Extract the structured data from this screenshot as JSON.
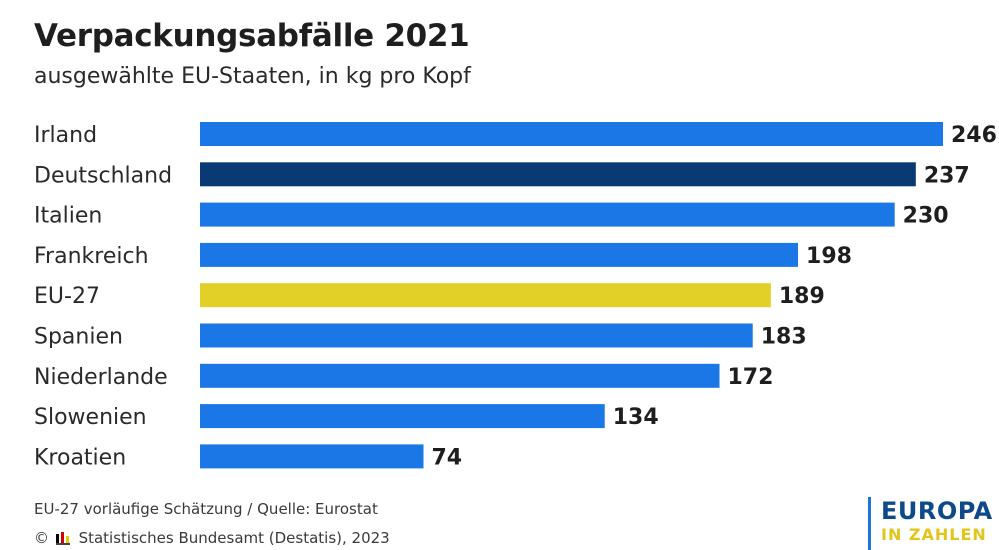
{
  "header": {
    "title": "Verpackungsabfälle 2021",
    "subtitle": "ausgewählte EU-Staaten, in kg pro Kopf"
  },
  "chart_data": {
    "type": "bar",
    "orientation": "horizontal",
    "categories": [
      "Irland",
      "Deutschland",
      "Italien",
      "Frankreich",
      "EU-27",
      "Spanien",
      "Niederlande",
      "Slowenien",
      "Kroatien"
    ],
    "values": [
      246,
      237,
      230,
      198,
      189,
      183,
      172,
      134,
      74
    ],
    "bar_colors": [
      "#1b77e6",
      "#0a3a73",
      "#1b77e6",
      "#1b77e6",
      "#e3d027",
      "#1b77e6",
      "#1b77e6",
      "#1b77e6",
      "#1b77e6"
    ],
    "xlim": [
      0,
      246
    ],
    "grid": false,
    "data_labels": true
  },
  "footer": {
    "note": "EU-27 vorläufige Schätzung / Quelle: Eurostat",
    "copyright_symbol": "©",
    "copyright_text": "Statistisches Bundesamt (Destatis), 2023"
  },
  "brand": {
    "line1": "EUROPA",
    "line2": "IN ZAHLEN",
    "accent_blue": "#1b77d8",
    "accent_yellow": "#e3c51a"
  }
}
